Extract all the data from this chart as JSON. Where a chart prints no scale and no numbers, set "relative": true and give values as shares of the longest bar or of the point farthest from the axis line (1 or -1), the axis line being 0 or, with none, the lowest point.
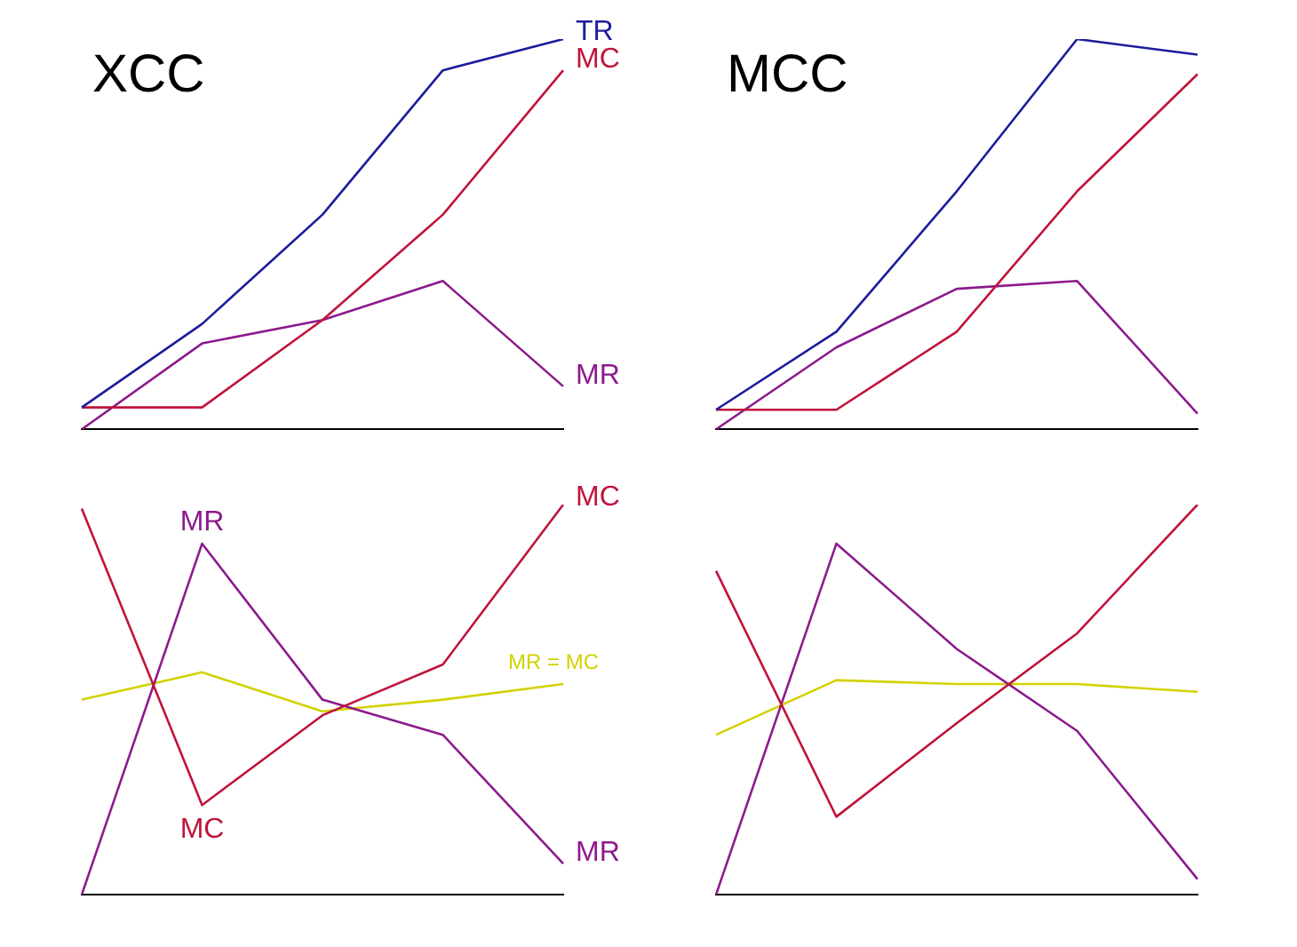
{
  "chart_data": [
    {
      "type": "line",
      "title": "XCC",
      "relative": true,
      "categories": [
        null,
        null,
        null,
        null,
        null
      ],
      "legend": false,
      "grid": false,
      "series": [
        {
          "name": "TR",
          "color": "#1c1c9c",
          "values": [
            0.056,
            0.27,
            0.55,
            0.92,
            1
          ]
        },
        {
          "name": "MC",
          "color": "#c0143c",
          "values": [
            0.056,
            0.056,
            0.28,
            0.55,
            0.92
          ]
        },
        {
          "name": "MR",
          "color": "#8c1a8c",
          "values": [
            0,
            0.22,
            0.28,
            0.38,
            0.11
          ]
        }
      ]
    },
    {
      "type": "line",
      "title": "MCC",
      "relative": true,
      "categories": [
        null,
        null,
        null,
        null,
        null
      ],
      "legend": false,
      "grid": false,
      "series": [
        {
          "color": "#1c1c9c",
          "values": [
            0.05,
            0.25,
            0.61,
            1,
            0.96
          ]
        },
        {
          "color": "#c0143c",
          "values": [
            0.05,
            0.05,
            0.25,
            0.61,
            0.91
          ]
        },
        {
          "color": "#8c1a8c",
          "values": [
            0,
            0.21,
            0.36,
            0.38,
            0.04
          ]
        }
      ]
    },
    {
      "type": "line",
      "relative": true,
      "categories": [
        null,
        null,
        null,
        null,
        null
      ],
      "legend": false,
      "grid": false,
      "annotations": [
        {
          "text": "MR",
          "y": 0.9
        },
        {
          "text": "MC",
          "y": 0.23
        }
      ],
      "series": [
        {
          "name": "MC",
          "color": "#c0143c",
          "values": [
            0.99,
            0.23,
            0.46,
            0.59,
            1
          ]
        },
        {
          "name": "MR",
          "color": "#8c1a8c",
          "values": [
            0,
            0.9,
            0.5,
            0.41,
            0.08
          ]
        },
        {
          "name": "MR = MC",
          "color": "#d2d200",
          "values": [
            0.5,
            0.57,
            0.47,
            0.5,
            0.54
          ]
        }
      ]
    },
    {
      "type": "line",
      "relative": true,
      "categories": [
        null,
        null,
        null,
        null,
        null
      ],
      "legend": false,
      "grid": false,
      "series": [
        {
          "color": "#c0143c",
          "values": [
            0.83,
            0.2,
            0.44,
            0.67,
            1
          ]
        },
        {
          "color": "#8c1a8c",
          "values": [
            0,
            0.9,
            0.63,
            0.42,
            0.04
          ]
        },
        {
          "color": "#d2d200",
          "values": [
            0.41,
            0.55,
            0.54,
            0.54,
            0.52
          ]
        }
      ]
    }
  ]
}
